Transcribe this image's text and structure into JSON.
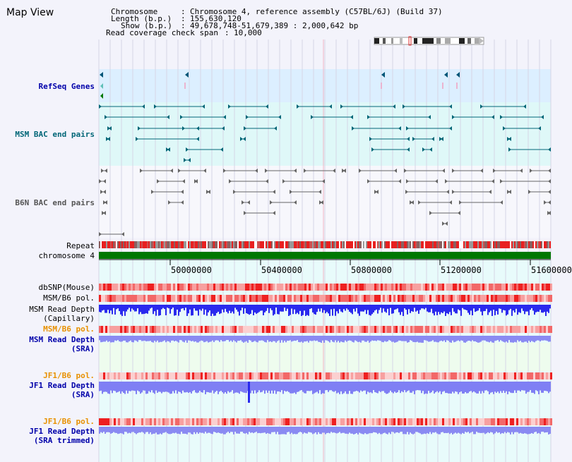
{
  "title": "Map View",
  "info": {
    "chromosome_label": "Chromosome",
    "chromosome_value": "Chromosome 4, reference assembly (C57BL/6J) (Build 37)",
    "length_label": "Length (b.p.)",
    "length_value": "155,630,120",
    "show_label": "Show (b.p.)",
    "show_value": "49,678,748-51,679,389 : 2,000,642 bp",
    "coverage_label": "Read coverage check span",
    "coverage_value": "10,000"
  },
  "tracks": {
    "refseq": "RefSeq Genes",
    "msm_bac": "MSM BAC end pairs",
    "b6n_bac": "B6N BAC end pairs",
    "repeat": "Repeat",
    "chromosome": "chromosome 4",
    "dbsnp": "dbSNP(Mouse)",
    "msm_pol1": "MSM/B6 pol.",
    "msm_depth_cap_1": "MSM Read Depth",
    "msm_depth_cap_2": "(Capillary)",
    "msm_pol2": "MSM/B6 pol.",
    "msm_depth_sra_1": "MSM Read Depth",
    "msm_depth_sra_2": "(SRA)",
    "jf1_pol1": "JF1/B6 pol.",
    "jf1_depth_sra_1": "JF1 Read Depth",
    "jf1_depth_sra_2": "(SRA)",
    "jf1_pol2": "JF1/B6 pol.",
    "jf1_depth_trim_1": "JF1 Read Depth",
    "jf1_depth_trim_2": "(SRA trimmed)"
  },
  "axis_ticks": [
    "50000000",
    "50400000",
    "50800000",
    "51200000",
    "51600000"
  ],
  "colors": {
    "refseq_bg": "#dcefff",
    "bac_bg": "#dff8f8",
    "chromosome": "#007700",
    "depth_blue": "#2a2aee",
    "depth_light": "#7f7ff4",
    "snp_red": "#ee3b3b",
    "teal": "#006677",
    "gray_pair": "#666666"
  }
}
